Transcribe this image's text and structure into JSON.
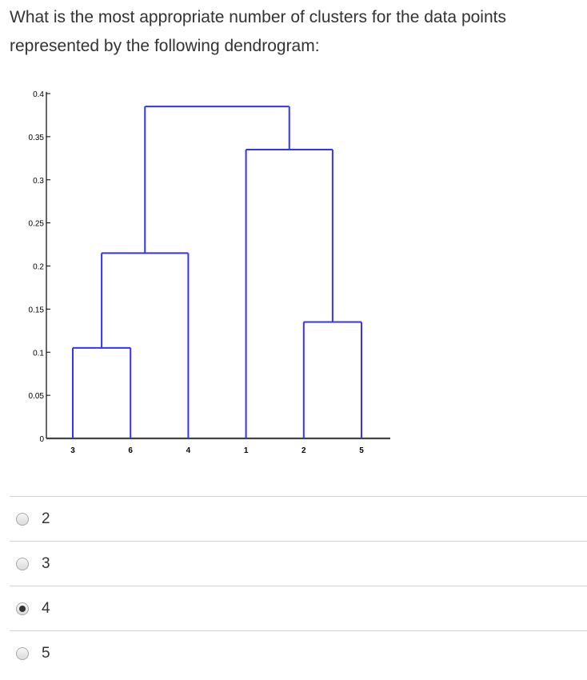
{
  "question": {
    "text": "What is the most appropriate number of clusters for the data points represented by the following dendrogram:"
  },
  "chart_data": {
    "type": "dendrogram",
    "title": "",
    "xlabel": "",
    "ylabel": "",
    "ylim": [
      0,
      0.4
    ],
    "y_ticks": [
      {
        "value": 0,
        "label": "0"
      },
      {
        "value": 0.05,
        "label": "0.05"
      },
      {
        "value": 0.1,
        "label": "0.1"
      },
      {
        "value": 0.15,
        "label": "0.15"
      },
      {
        "value": 0.2,
        "label": "0.2"
      },
      {
        "value": 0.25,
        "label": "0.25"
      },
      {
        "value": 0.3,
        "label": "0.3"
      },
      {
        "value": 0.35,
        "label": "0.35"
      },
      {
        "value": 0.4,
        "label": "0.4"
      }
    ],
    "leaves": [
      "3",
      "6",
      "4",
      "1",
      "2",
      "5"
    ],
    "merges": [
      {
        "left": "3",
        "right": "6",
        "height": 0.105
      },
      {
        "left": "3-6",
        "right": "4",
        "height": 0.215
      },
      {
        "left": "2",
        "right": "5",
        "height": 0.135
      },
      {
        "left": "1",
        "right": "2-5",
        "height": 0.335
      },
      {
        "left": "3-6-4",
        "right": "1-2-5",
        "height": 0.385
      }
    ],
    "line_color": "#3333ff",
    "axis_color": "#000000",
    "grid": false
  },
  "options": [
    {
      "label": "2",
      "checked": false
    },
    {
      "label": "3",
      "checked": false
    },
    {
      "label": "4",
      "checked": true
    },
    {
      "label": "5",
      "checked": false
    }
  ]
}
